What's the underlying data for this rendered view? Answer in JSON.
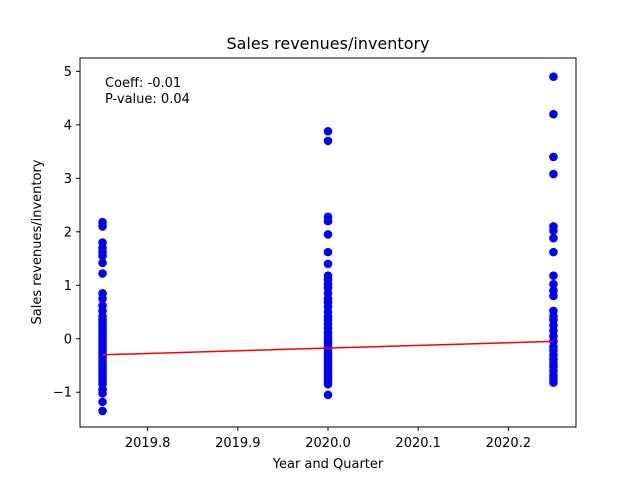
{
  "chart_data": {
    "type": "scatter",
    "title": "Sales revenues/inventory",
    "xlabel": "Year and Quarter",
    "ylabel": "Sales revenues/inventory",
    "xlim": [
      2019.725,
      2020.275
    ],
    "ylim": [
      -1.65,
      5.25
    ],
    "xticks": [
      2019.8,
      2019.9,
      2020.0,
      2020.1,
      2020.2
    ],
    "xtick_labels": [
      "2019.8",
      "2019.9",
      "2020.0",
      "2020.1",
      "2020.2"
    ],
    "yticks": [
      -1,
      0,
      1,
      2,
      3,
      4,
      5
    ],
    "ytick_labels": [
      "−1",
      "0",
      "1",
      "2",
      "3",
      "4",
      "5"
    ],
    "grid": false,
    "annotations": [
      "Coeff: -0.01",
      "P-value: 0.04"
    ],
    "colors": {
      "points": "#0000ff",
      "fit_line": "#ff0000"
    },
    "series": [
      {
        "x": 2019.75,
        "y": [
          2.18,
          2.1,
          1.8,
          1.7,
          1.62,
          1.55,
          1.42,
          1.22,
          0.85,
          0.75,
          0.62,
          0.52,
          0.42,
          0.35,
          0.3,
          0.25,
          0.2,
          0.15,
          0.1,
          0.05,
          0.0,
          -0.05,
          -0.1,
          -0.15,
          -0.2,
          -0.25,
          -0.3,
          -0.35,
          -0.4,
          -0.45,
          -0.5,
          -0.55,
          -0.6,
          -0.65,
          -0.7,
          -0.75,
          -0.8,
          -0.85,
          -0.95,
          -1.02,
          -1.18,
          -1.35
        ]
      },
      {
        "x": 2020.0,
        "y": [
          3.88,
          3.7,
          2.28,
          2.2,
          1.95,
          1.62,
          1.4,
          1.18,
          1.1,
          1.02,
          0.95,
          0.85,
          0.75,
          0.68,
          0.6,
          0.5,
          0.42,
          0.35,
          0.28,
          0.2,
          0.12,
          0.05,
          0.0,
          -0.05,
          -0.1,
          -0.15,
          -0.2,
          -0.25,
          -0.3,
          -0.35,
          -0.4,
          -0.45,
          -0.5,
          -0.55,
          -0.6,
          -0.65,
          -0.7,
          -0.75,
          -0.8,
          -0.85,
          -1.05
        ]
      },
      {
        "x": 2020.25,
        "y": [
          4.9,
          4.2,
          3.4,
          3.08,
          2.1,
          2.02,
          1.88,
          1.62,
          1.18,
          1.02,
          0.9,
          0.8,
          0.52,
          0.42,
          0.35,
          0.25,
          0.15,
          0.05,
          -0.05,
          -0.15,
          -0.22,
          -0.3,
          -0.38,
          -0.45,
          -0.52,
          -0.6,
          -0.68,
          -0.75,
          -0.82
        ]
      }
    ],
    "fit_line": {
      "x": [
        2019.75,
        2020.25
      ],
      "y": [
        -0.3,
        -0.05
      ]
    }
  }
}
